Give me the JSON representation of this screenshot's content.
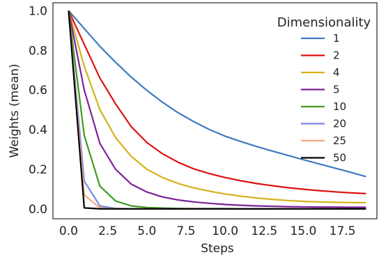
{
  "chart_data": {
    "type": "line",
    "xlabel": "Steps",
    "ylabel": "Weights (mean)",
    "xlim": [
      -1,
      19.7
    ],
    "ylim": [
      -0.05,
      1.04
    ],
    "xticks": [
      0.0,
      2.5,
      5.0,
      7.5,
      10.0,
      12.5,
      15.0,
      17.5
    ],
    "xtick_labels": [
      "0.0",
      "2.5",
      "5.0",
      "7.5",
      "10.0",
      "12.5",
      "15.0",
      "17.5"
    ],
    "yticks": [
      0.0,
      0.2,
      0.4,
      0.6,
      0.8,
      1.0
    ],
    "ytick_labels": [
      "0.0",
      "0.2",
      "0.4",
      "0.6",
      "0.8",
      "1.0"
    ],
    "grid": false,
    "legend": {
      "title": "Dimensionality",
      "placement": "top-right"
    },
    "x": [
      0,
      1,
      2,
      3,
      4,
      5,
      6,
      7,
      8,
      9,
      10,
      11,
      12,
      13,
      14,
      15,
      16,
      17,
      18,
      19
    ],
    "series": [
      {
        "name": "1",
        "color": "#3b7bbf",
        "values": [
          1.0,
          0.91,
          0.82,
          0.74,
          0.665,
          0.598,
          0.538,
          0.485,
          0.44,
          0.4,
          0.367,
          0.34,
          0.315,
          0.292,
          0.27,
          0.248,
          0.227,
          0.206,
          0.185,
          0.163
        ]
      },
      {
        "name": "2",
        "color": "#dd1111",
        "values": [
          1.0,
          0.83,
          0.66,
          0.53,
          0.415,
          0.335,
          0.278,
          0.235,
          0.202,
          0.178,
          0.158,
          0.142,
          0.128,
          0.117,
          0.107,
          0.099,
          0.092,
          0.086,
          0.081,
          0.077
        ]
      },
      {
        "name": "4",
        "color": "#d4b21b",
        "values": [
          1.0,
          0.72,
          0.5,
          0.36,
          0.265,
          0.2,
          0.158,
          0.128,
          0.106,
          0.089,
          0.075,
          0.064,
          0.055,
          0.048,
          0.042,
          0.038,
          0.035,
          0.033,
          0.032,
          0.031
        ]
      },
      {
        "name": "5",
        "color": "#7d2197",
        "values": [
          1.0,
          0.6,
          0.33,
          0.2,
          0.125,
          0.085,
          0.06,
          0.045,
          0.035,
          0.028,
          0.022,
          0.018,
          0.015,
          0.013,
          0.011,
          0.01,
          0.009,
          0.009,
          0.008,
          0.008
        ]
      },
      {
        "name": "10",
        "color": "#3f9a1e",
        "values": [
          1.0,
          0.37,
          0.115,
          0.04,
          0.015,
          0.007,
          0.004,
          0.002,
          0.001,
          0.001,
          0.001,
          0.0,
          0.0,
          0.0,
          0.0,
          0.0,
          0.0,
          0.0,
          0.0,
          0.0
        ]
      },
      {
        "name": "20",
        "color": "#7a8ae6",
        "values": [
          1.0,
          0.14,
          0.015,
          0.002,
          0.0,
          0.0,
          0.0,
          0.0,
          0.0,
          0.0,
          0.0,
          0.0,
          0.0,
          0.0,
          0.0,
          0.0,
          0.0,
          0.0,
          0.0,
          0.0
        ]
      },
      {
        "name": "25",
        "color": "#f5a97a",
        "values": [
          1.0,
          0.07,
          0.005,
          0.0,
          0.0,
          0.0,
          0.0,
          0.0,
          0.0,
          0.0,
          0.0,
          0.0,
          0.0,
          0.0,
          0.0,
          0.0,
          0.0,
          0.0,
          0.0,
          0.0
        ]
      },
      {
        "name": "50",
        "color": "#000000",
        "values": [
          1.0,
          0.005,
          0.0,
          0.0,
          0.0,
          0.0,
          0.0,
          0.0,
          0.0,
          0.0,
          0.0,
          0.0,
          0.0,
          0.0,
          0.0,
          0.0,
          0.0,
          0.0,
          0.0,
          0.0
        ]
      }
    ]
  }
}
